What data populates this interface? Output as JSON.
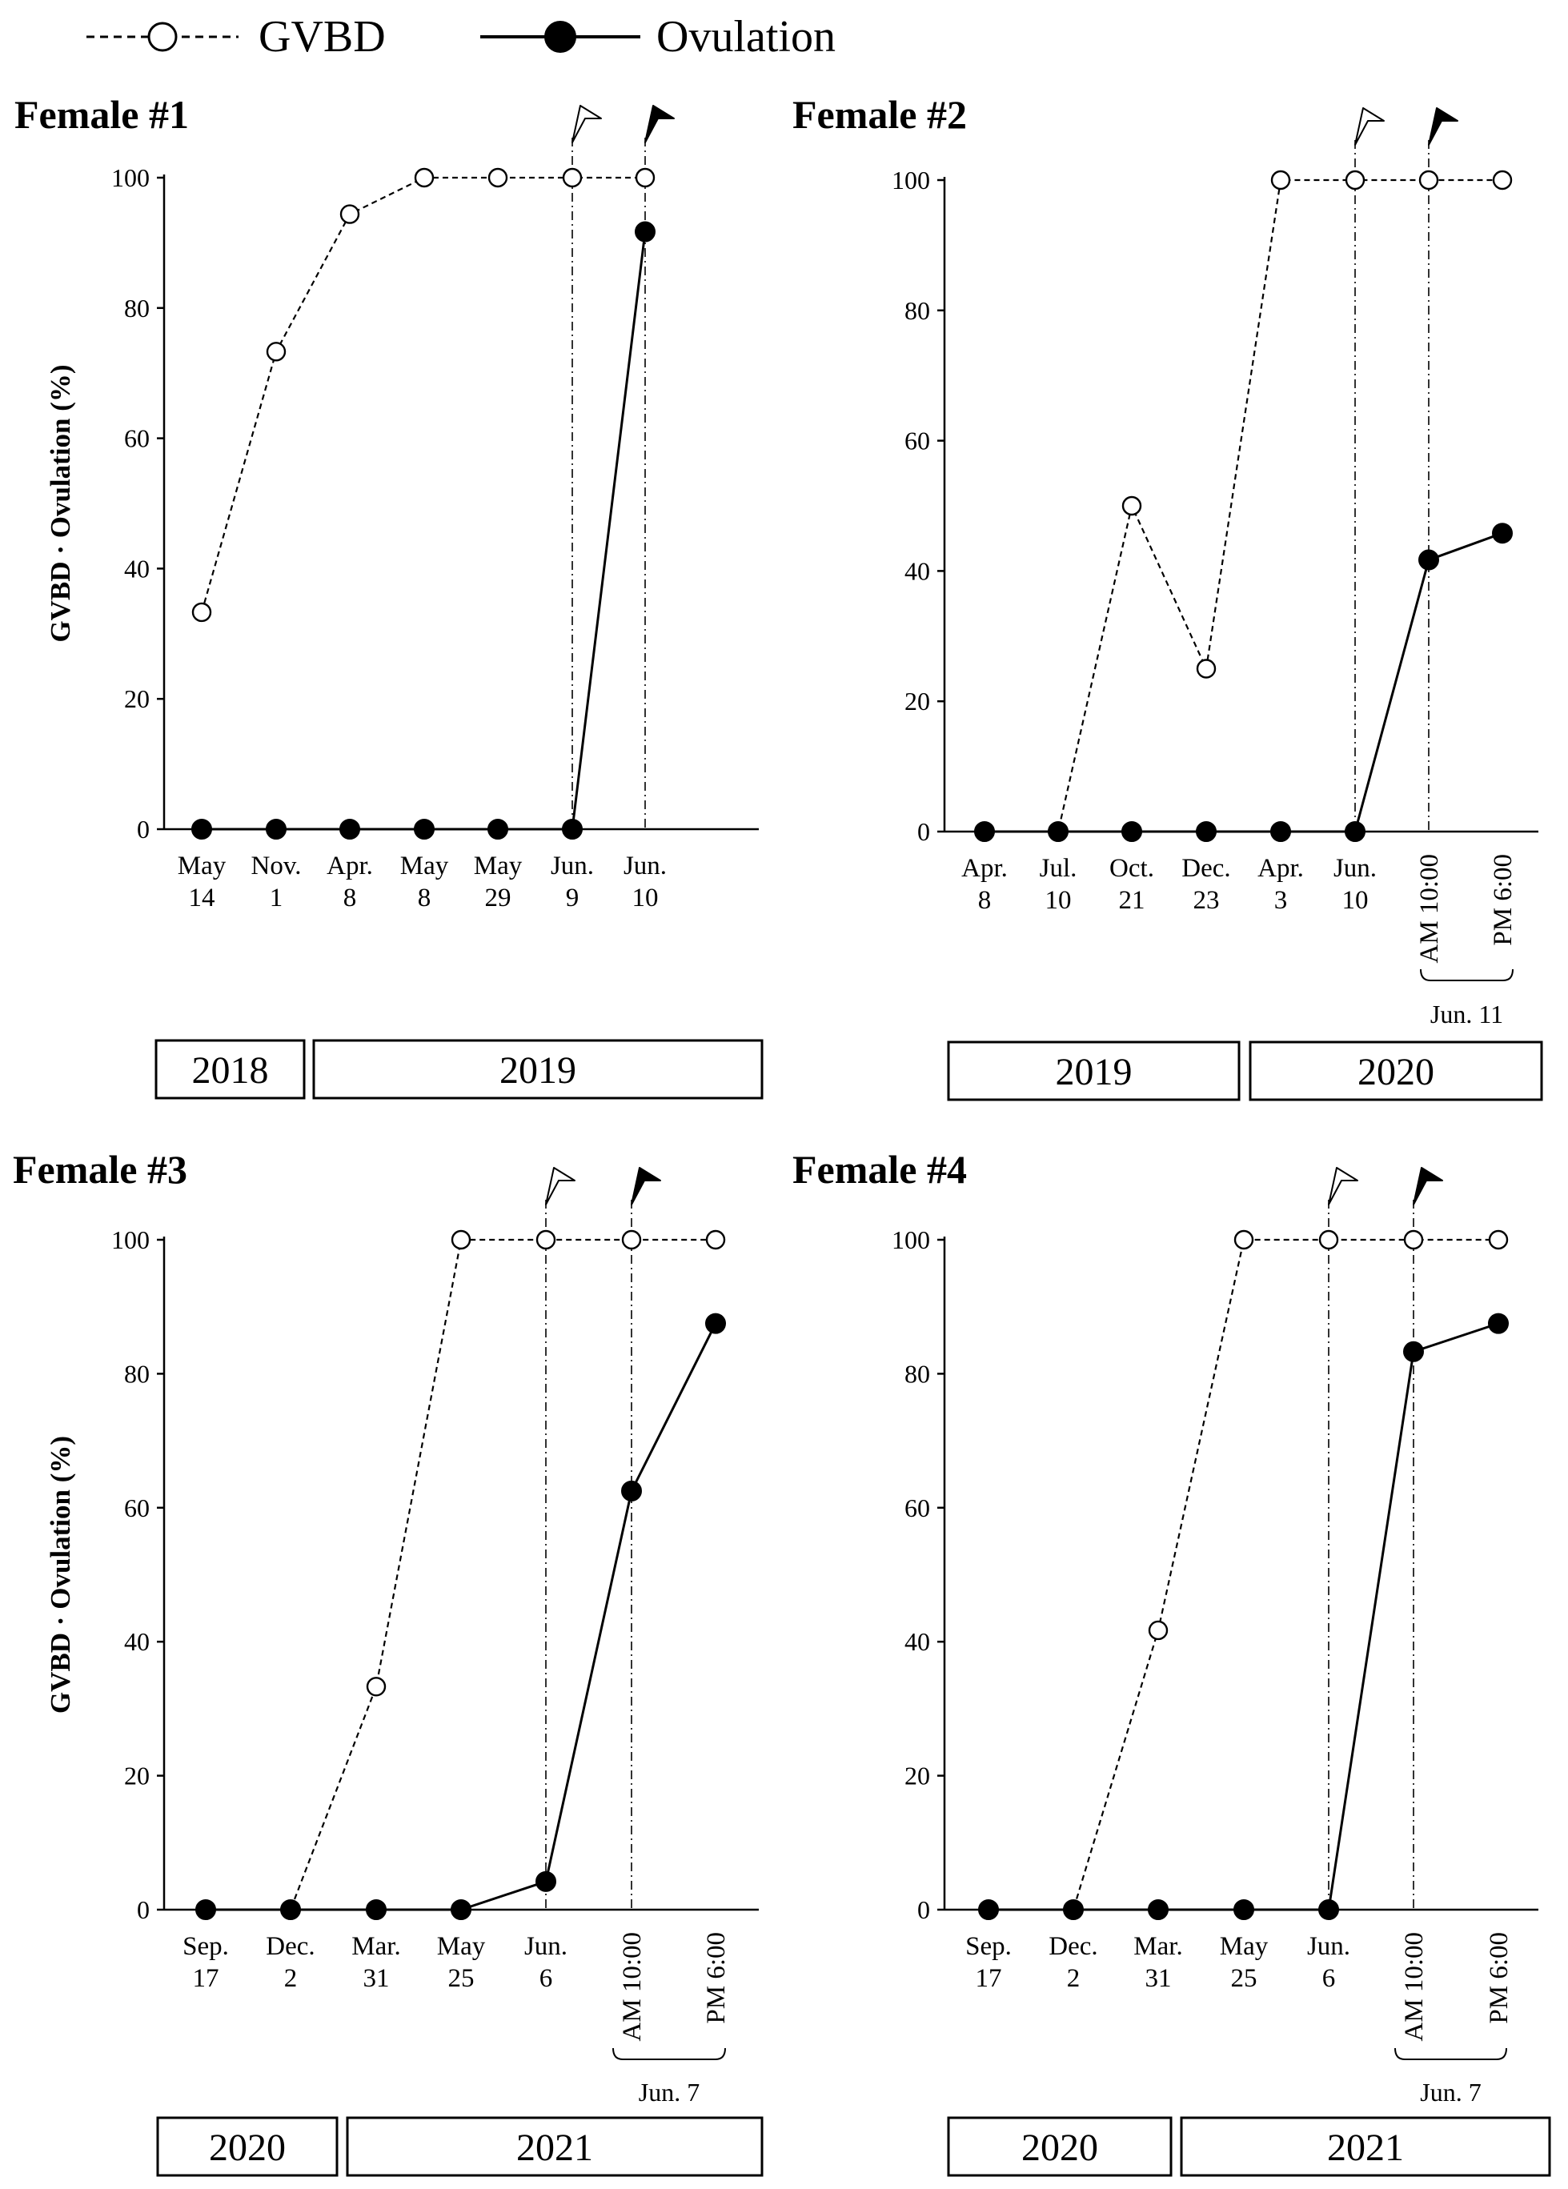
{
  "legend": {
    "items": [
      {
        "label": "GVBD",
        "style": "dashed-open"
      },
      {
        "label": "Ovulation",
        "style": "solid-filled"
      }
    ],
    "placement": "top-left"
  },
  "colors": {
    "line": "#000000",
    "open_marker_fill": "#ffffff",
    "filled_marker_fill": "#000000",
    "background": "#ffffff"
  },
  "icons": [
    "open-flag-icon",
    "filled-flag-icon"
  ],
  "chart_data": [
    {
      "type": "line",
      "title": "Female #1",
      "ylabel": "GVBD · Ovulation (%)",
      "xlabel": "",
      "ylim": [
        0,
        100
      ],
      "yticks": [
        "0",
        "20",
        "40",
        "60",
        "80",
        "100"
      ],
      "grid": false,
      "categories": [
        [
          "May",
          "14"
        ],
        [
          "Nov.",
          "1"
        ],
        [
          "Apr.",
          "8"
        ],
        [
          "May",
          "8"
        ],
        [
          "May",
          "29"
        ],
        [
          "Jun.",
          "9"
        ],
        [
          "Jun.",
          "10"
        ]
      ],
      "series": [
        {
          "name": "GVBD",
          "values": [
            33.3,
            73.3,
            94.4,
            100,
            100,
            100,
            100
          ]
        },
        {
          "name": "Ovulation",
          "values": [
            0,
            0,
            0,
            0,
            0,
            0,
            91.7
          ]
        }
      ],
      "markers": [
        {
          "icon": "open-flag-icon",
          "category_index": 5
        },
        {
          "icon": "filled-flag-icon",
          "category_index": 6
        }
      ],
      "sublabel": "",
      "years": [
        {
          "label": "2018",
          "from": 0,
          "to": 0
        },
        {
          "label": "2019",
          "from": 1,
          "to": 6
        }
      ]
    },
    {
      "type": "line",
      "title": "Female #2",
      "ylabel": "",
      "xlabel": "",
      "ylim": [
        0,
        100
      ],
      "yticks": [
        "0",
        "20",
        "40",
        "60",
        "80",
        "100"
      ],
      "grid": false,
      "categories": [
        [
          "Apr.",
          "8"
        ],
        [
          "Jul.",
          "10"
        ],
        [
          "Oct.",
          "21"
        ],
        [
          "Dec.",
          "23"
        ],
        [
          "Apr.",
          "3"
        ],
        [
          "Jun.",
          "10"
        ],
        [
          "AM 10:00"
        ],
        [
          "PM 6:00"
        ]
      ],
      "series": [
        {
          "name": "GVBD",
          "values": [
            0,
            0,
            50,
            25,
            100,
            100,
            100,
            100
          ]
        },
        {
          "name": "Ovulation",
          "values": [
            0,
            0,
            0,
            0,
            0,
            0,
            41.7,
            45.8
          ]
        }
      ],
      "markers": [
        {
          "icon": "open-flag-icon",
          "category_index": 5
        },
        {
          "icon": "filled-flag-icon",
          "category_index": 6
        }
      ],
      "sublabel": "Jun. 11",
      "years": [
        {
          "label": "2019",
          "from": 0,
          "to": 3
        },
        {
          "label": "2020",
          "from": 4,
          "to": 7
        }
      ]
    },
    {
      "type": "line",
      "title": "Female #3",
      "ylabel": "GVBD · Ovulation (%)",
      "xlabel": "",
      "ylim": [
        0,
        100
      ],
      "yticks": [
        "0",
        "20",
        "40",
        "60",
        "80",
        "100"
      ],
      "grid": false,
      "categories": [
        [
          "Sep.",
          "17"
        ],
        [
          "Dec.",
          "2"
        ],
        [
          "Mar.",
          "31"
        ],
        [
          "May",
          "25"
        ],
        [
          "Jun.",
          "6"
        ],
        [
          "AM 10:00"
        ],
        [
          "PM 6:00"
        ]
      ],
      "series": [
        {
          "name": "GVBD",
          "values": [
            0,
            0,
            33.3,
            100,
            100,
            100,
            100
          ]
        },
        {
          "name": "Ovulation",
          "values": [
            0,
            0,
            0,
            0,
            4.2,
            62.5,
            87.5
          ]
        }
      ],
      "markers": [
        {
          "icon": "open-flag-icon",
          "category_index": 4
        },
        {
          "icon": "filled-flag-icon",
          "category_index": 5
        }
      ],
      "sublabel": "Jun. 7",
      "years": [
        {
          "label": "2020",
          "from": 0,
          "to": 1
        },
        {
          "label": "2021",
          "from": 2,
          "to": 6
        }
      ]
    },
    {
      "type": "line",
      "title": "Female #4",
      "ylabel": "",
      "xlabel": "",
      "ylim": [
        0,
        100
      ],
      "yticks": [
        "0",
        "20",
        "40",
        "60",
        "80",
        "100"
      ],
      "grid": false,
      "categories": [
        [
          "Sep.",
          "17"
        ],
        [
          "Dec.",
          "2"
        ],
        [
          "Mar.",
          "31"
        ],
        [
          "May",
          "25"
        ],
        [
          "Jun.",
          "6"
        ],
        [
          "AM 10:00"
        ],
        [
          "PM 6:00"
        ]
      ],
      "series": [
        {
          "name": "GVBD",
          "values": [
            0,
            0,
            41.7,
            100,
            100,
            100,
            100
          ]
        },
        {
          "name": "Ovulation",
          "values": [
            0,
            0,
            0,
            0,
            0,
            83.3,
            87.5
          ]
        }
      ],
      "markers": [
        {
          "icon": "open-flag-icon",
          "category_index": 4
        },
        {
          "icon": "filled-flag-icon",
          "category_index": 5
        }
      ],
      "sublabel": "Jun. 7",
      "years": [
        {
          "label": "2020",
          "from": 0,
          "to": 1
        },
        {
          "label": "2021",
          "from": 2,
          "to": 6
        }
      ]
    }
  ]
}
